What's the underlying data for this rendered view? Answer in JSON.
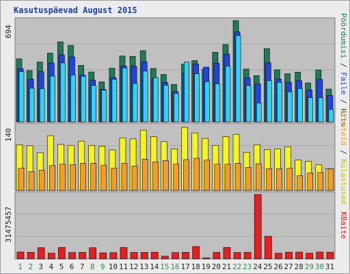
{
  "title": "Kasutuspäevad August 2015",
  "colors": {
    "hits": "#1f7a5a",
    "files": "#1f44e0",
    "pages": "#31d3f5",
    "visits": "#f5f51c",
    "sites": "#f59b2c",
    "kbytes": "#e52020",
    "weekday_label": "#1f1f1f",
    "weekend_label": "#2a8a4a"
  },
  "chart_data": [
    {
      "type": "bar",
      "name": "hits-files-pages",
      "ymax_label": "694",
      "ylim": [
        0,
        694
      ],
      "categories": [
        "1",
        "2",
        "3",
        "4",
        "5",
        "6",
        "7",
        "8",
        "9",
        "10",
        "11",
        "12",
        "13",
        "14",
        "15",
        "16",
        "17",
        "18",
        "19",
        "20",
        "21",
        "22",
        "23",
        "24",
        "25",
        "26",
        "27",
        "28",
        "29",
        "30",
        "31"
      ],
      "weekend_days": [
        "1",
        "2",
        "8",
        "9",
        "15",
        "16",
        "22",
        "23",
        "29",
        "30"
      ],
      "right_labels": [
        "Hits",
        "Faile",
        "Pöördumisi"
      ],
      "series": [
        {
          "name": "Hits",
          "values": [
            432,
            352,
            410,
            471,
            548,
            524,
            387,
            342,
            274,
            368,
            451,
            449,
            488,
            366,
            325,
            257,
            396,
            420,
            361,
            477,
            530,
            694,
            362,
            317,
            502,
            357,
            330,
            341,
            267,
            356,
            225
          ]
        },
        {
          "name": "Faile",
          "values": [
            365,
            294,
            344,
            403,
            459,
            445,
            321,
            286,
            223,
            303,
            383,
            381,
            412,
            299,
            271,
            208,
            333,
            397,
            375,
            402,
            464,
            616,
            302,
            260,
            405,
            294,
            270,
            282,
            219,
            291,
            181
          ]
        },
        {
          "name": "Pöördumisi",
          "values": [
            345,
            231,
            228,
            314,
            404,
            322,
            313,
            250,
            218,
            292,
            370,
            263,
            348,
            304,
            252,
            195,
            410,
            330,
            276,
            261,
            383,
            591,
            250,
            130,
            283,
            271,
            206,
            228,
            166,
            166,
            85
          ]
        }
      ]
    },
    {
      "type": "bar",
      "name": "visits-sites",
      "ymax_label": "140",
      "ylim": [
        0,
        140
      ],
      "right_labels": [
        "Külastused",
        "Arvuteid"
      ],
      "series": [
        {
          "name": "Külastused",
          "values": [
            99,
            97,
            82,
            119,
            100,
            98,
            107,
            98,
            96,
            88,
            114,
            112,
            131,
            117,
            106,
            90,
            137,
            125,
            113,
            98,
            117,
            122,
            83,
            99,
            89,
            90,
            95,
            66,
            63,
            56,
            47
          ]
        },
        {
          "name": "Arvuteid",
          "values": [
            48,
            41,
            44,
            54,
            57,
            56,
            59,
            59,
            55,
            48,
            59,
            53,
            68,
            62,
            65,
            57,
            67,
            70,
            66,
            57,
            57,
            59,
            50,
            58,
            47,
            47,
            48,
            32,
            38,
            39,
            47
          ]
        }
      ]
    },
    {
      "type": "bar",
      "name": "kbytes",
      "ymax_label": "31475457",
      "ylim": [
        0,
        31475457
      ],
      "right_labels": [
        "KBaite"
      ],
      "series": [
        {
          "name": "KBaite",
          "values": [
            3380000,
            3230000,
            5480000,
            2800000,
            5610000,
            3140000,
            3200000,
            5480000,
            2950000,
            3040000,
            5610000,
            3180000,
            3210000,
            3290000,
            1360000,
            3100000,
            3240000,
            6040000,
            520000,
            3200000,
            5610000,
            3140000,
            3200000,
            31475457,
            11050000,
            2800000,
            3300000,
            3330000,
            2800000,
            3370000,
            3300000
          ]
        }
      ]
    }
  ]
}
